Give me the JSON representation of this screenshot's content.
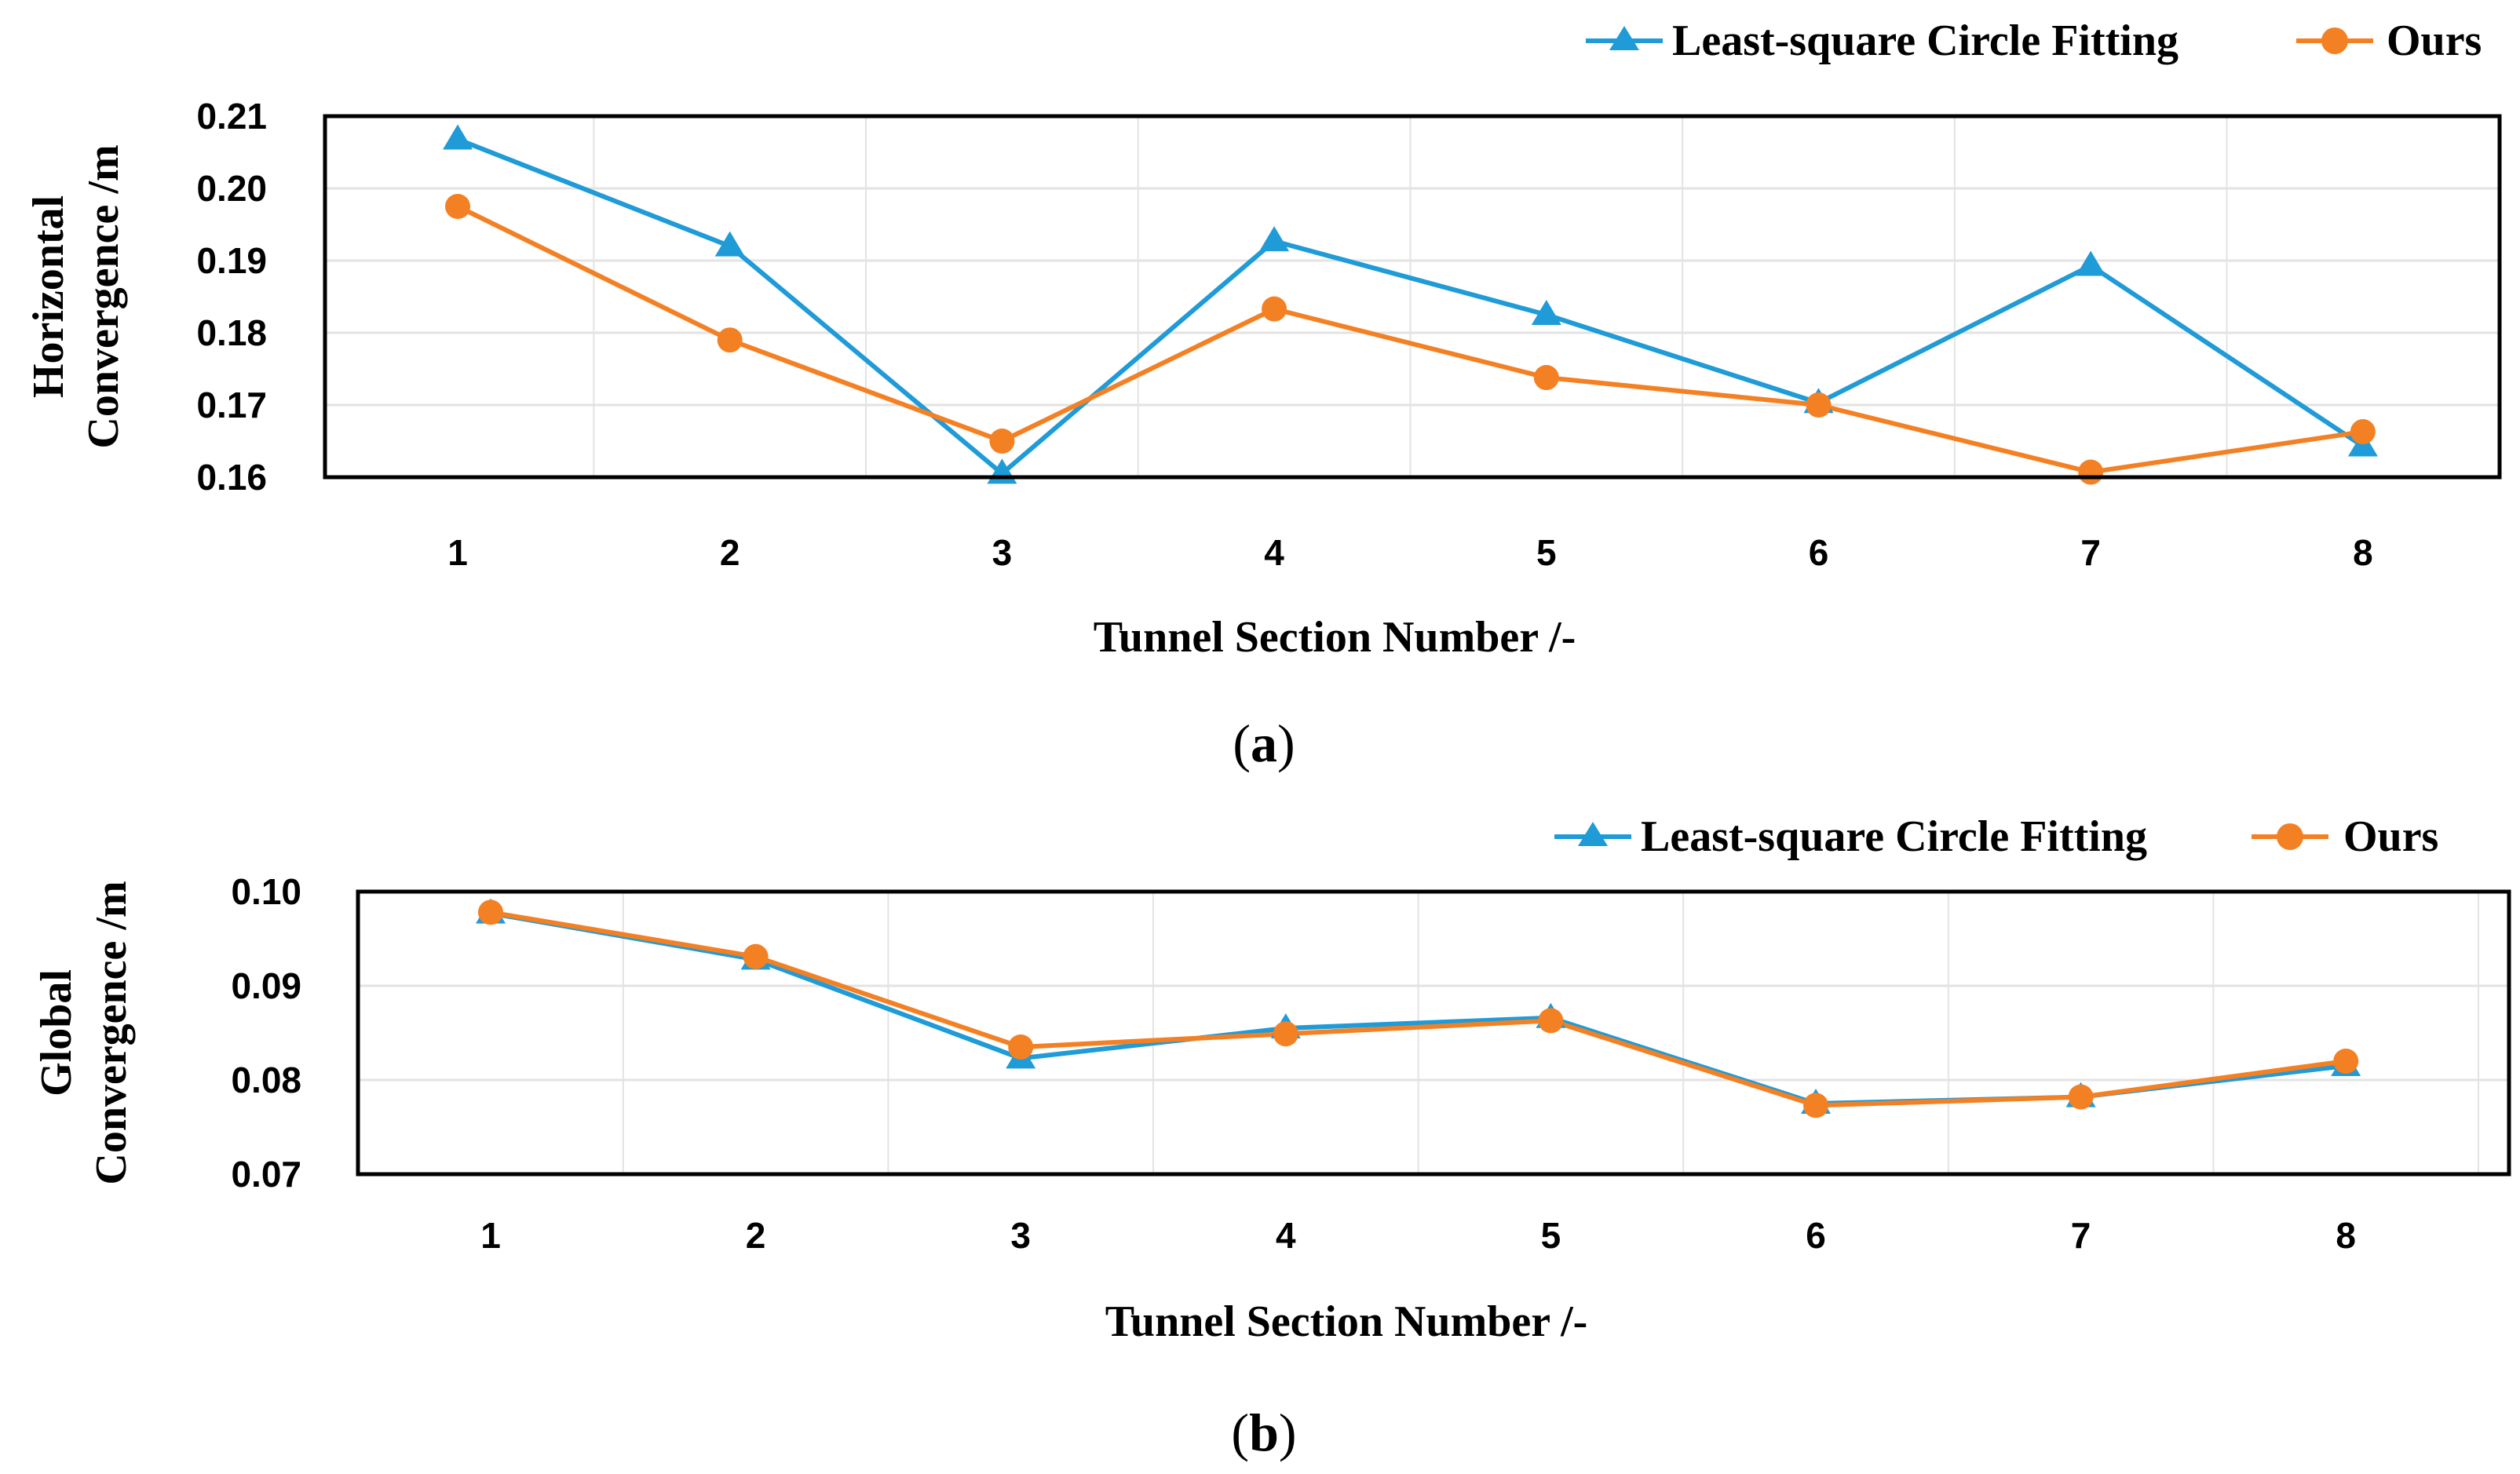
{
  "colors": {
    "series_a": "#1f9bd7",
    "series_b": "#f48024",
    "grid": "#e3e3e3",
    "frame": "#000000"
  },
  "chart_data": [
    {
      "type": "line",
      "caption_open": "(",
      "caption_letter": "a",
      "caption_close": ")",
      "categories": [
        "1",
        "2",
        "3",
        "4",
        "5",
        "6",
        "7",
        "8"
      ],
      "xlabel": "Tunnel Section Number /-",
      "ylabel_lines": [
        "Horizontal",
        "Convergence /m"
      ],
      "ylim": [
        0.16,
        0.21
      ],
      "yticks": [
        "0.16",
        "0.17",
        "0.18",
        "0.19",
        "0.20",
        "0.21"
      ],
      "legend_position": "top-right",
      "series": [
        {
          "name": "Least-square Circle Fitting",
          "marker": "triangle",
          "values": [
            0.2068,
            0.192,
            0.1605,
            0.1927,
            0.1825,
            0.1703,
            0.1893,
            0.1643
          ]
        },
        {
          "name": "Ours",
          "marker": "circle",
          "values": [
            0.1975,
            0.179,
            0.165,
            0.1833,
            0.1738,
            0.17,
            0.1607,
            0.1663
          ]
        }
      ]
    },
    {
      "type": "line",
      "caption_open": "(",
      "caption_letter": "b",
      "caption_close": ")",
      "categories": [
        "1",
        "2",
        "3",
        "4",
        "5",
        "6",
        "7",
        "8"
      ],
      "xlabel": "Tunnel Section Number /-",
      "ylabel_lines": [
        "Global",
        "Convergence /m"
      ],
      "ylim": [
        0.07,
        0.1
      ],
      "yticks": [
        "0.07",
        "0.08",
        "0.09",
        "0.10"
      ],
      "legend_position": "top-right",
      "series": [
        {
          "name": "Least-square Circle Fitting",
          "marker": "triangle",
          "values": [
            0.0977,
            0.0928,
            0.0823,
            0.0855,
            0.0866,
            0.0775,
            0.0782,
            0.0815
          ]
        },
        {
          "name": "Ours",
          "marker": "circle",
          "values": [
            0.0978,
            0.0931,
            0.0835,
            0.0849,
            0.0863,
            0.0773,
            0.0782,
            0.082
          ]
        }
      ]
    }
  ]
}
